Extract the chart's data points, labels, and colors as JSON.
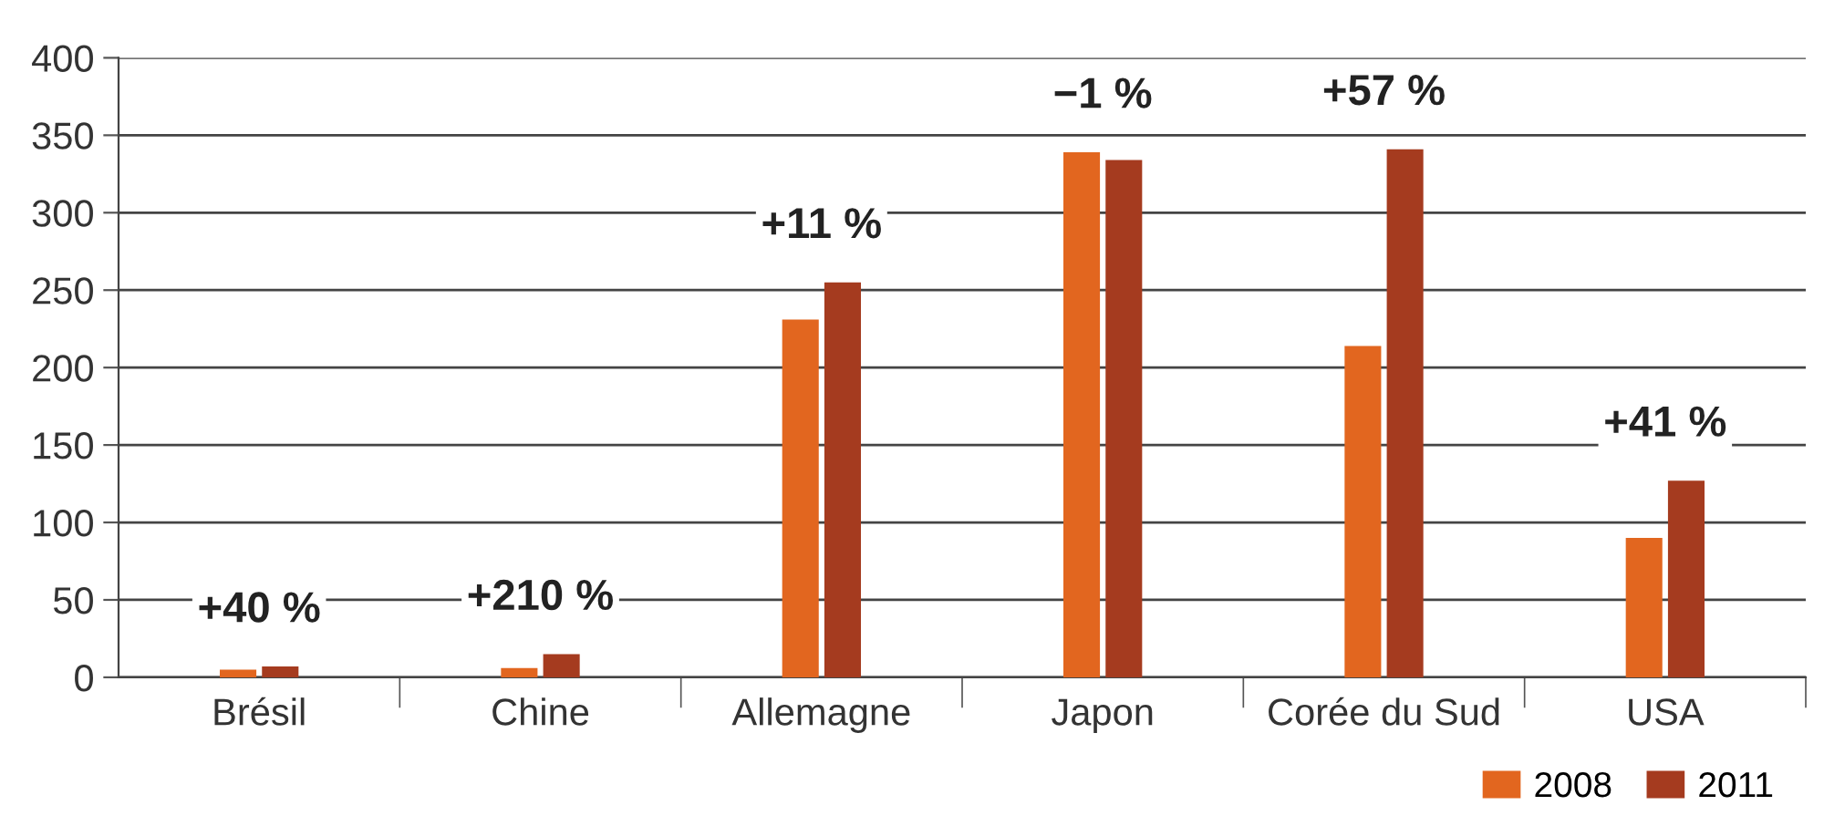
{
  "chart_data": {
    "type": "bar",
    "categories": [
      "Brésil",
      "Chine",
      "Allemagne",
      "Japon",
      "Corée du Sud",
      "USA"
    ],
    "series": [
      {
        "name": "2008",
        "color": "#e2661f",
        "values": [
          5,
          6,
          231,
          339,
          214,
          90
        ]
      },
      {
        "name": "2011",
        "color": "#a53b1f",
        "values": [
          7,
          15,
          255,
          334,
          341,
          127
        ]
      }
    ],
    "ylim": [
      0,
      400
    ],
    "yticks": [
      0,
      50,
      100,
      150,
      200,
      250,
      300,
      350,
      400
    ],
    "grid": "y",
    "legend": "bottom right",
    "annotations": [
      "+40 %",
      "+210 %",
      "+11 %",
      "−1 %",
      "+57 %",
      "+41 %"
    ]
  }
}
